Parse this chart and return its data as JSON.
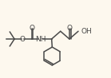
{
  "bg_color": "#fdf8ee",
  "bond_color": "#4a4a4a",
  "atom_color": "#4a4a4a",
  "lw": 1.1,
  "fs": 6.5,
  "xlim": [
    0,
    10
  ],
  "ylim": [
    0,
    7
  ]
}
